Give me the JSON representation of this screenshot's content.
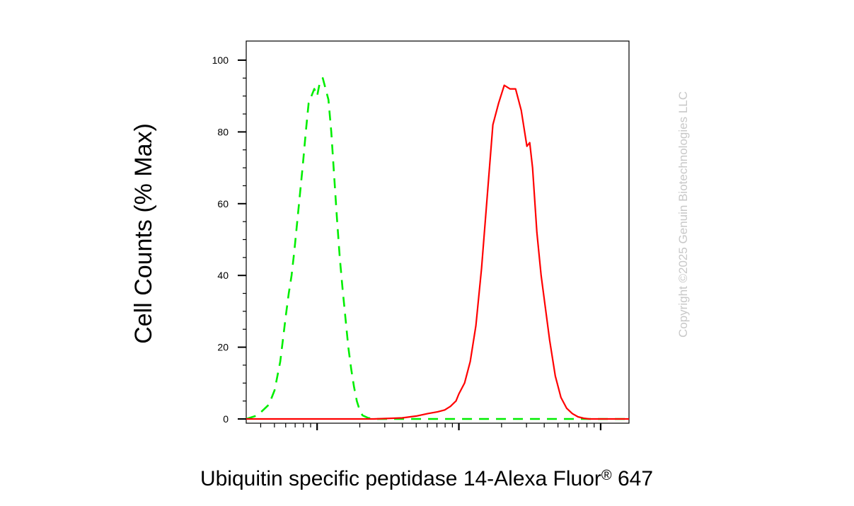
{
  "chart_data": {
    "type": "line",
    "xlabel_main": "Ubiquitin specific peptidase 14-Alexa Fluor",
    "xlabel_sup": "®",
    "xlabel_suffix": " 647",
    "ylabel": "Cell Counts (% Max)",
    "watermark": "Copyright ©2025 Genuin Biotechnologies LLC",
    "xscale": "log",
    "xlim": [
      0.5,
      3.2
    ],
    "ylim": [
      0,
      105
    ],
    "yticks": [
      0,
      20,
      40,
      60,
      80,
      100
    ],
    "ytick_labels": [
      "0",
      "20",
      "40",
      "60",
      "80",
      "100"
    ],
    "xtick_labels_shown": false,
    "grid": false,
    "series": [
      {
        "style": "dashed",
        "color": "#00ee00",
        "x": [
          0.5,
          0.58,
          0.66,
          0.7,
          0.74,
          0.78,
          0.8,
          0.82,
          0.84,
          0.86,
          0.88,
          0.9,
          0.92,
          0.94,
          0.96,
          0.98,
          1.0,
          1.02,
          1.04,
          1.06,
          1.08,
          1.1,
          1.12,
          1.14,
          1.16,
          1.18,
          1.2,
          1.22,
          1.24,
          1.26,
          1.28,
          1.3,
          1.32,
          1.36,
          1.4,
          1.45,
          1.5,
          2.0,
          3.2
        ],
        "y": [
          0,
          1,
          4,
          8,
          16,
          29,
          35,
          40,
          47,
          55,
          63,
          71,
          80,
          88,
          90,
          92,
          90,
          94,
          95,
          92,
          89,
          80,
          68,
          56,
          45,
          36,
          28,
          20,
          14,
          9,
          5,
          2.5,
          1,
          0.3,
          0,
          0,
          0,
          0,
          0
        ]
      },
      {
        "style": "solid",
        "color": "#ff0000",
        "x": [
          0.5,
          1.4,
          1.6,
          1.7,
          1.78,
          1.85,
          1.9,
          1.94,
          1.98,
          2.0,
          2.04,
          2.08,
          2.12,
          2.16,
          2.2,
          2.24,
          2.28,
          2.32,
          2.36,
          2.4,
          2.44,
          2.48,
          2.5,
          2.52,
          2.55,
          2.58,
          2.6,
          2.64,
          2.68,
          2.72,
          2.76,
          2.8,
          2.84,
          2.88,
          2.92,
          2.96,
          3.0,
          3.05,
          3.1,
          3.2
        ],
        "y": [
          0,
          0,
          0.3,
          0.8,
          1.5,
          2,
          2.5,
          3.5,
          5,
          7,
          10,
          16,
          26,
          42,
          62,
          82,
          88,
          93,
          92,
          92,
          86,
          76,
          77,
          70,
          52,
          40,
          34,
          22,
          12,
          6,
          3,
          1.5,
          0.6,
          0.2,
          0,
          0,
          0,
          0,
          0,
          0
        ]
      }
    ]
  }
}
